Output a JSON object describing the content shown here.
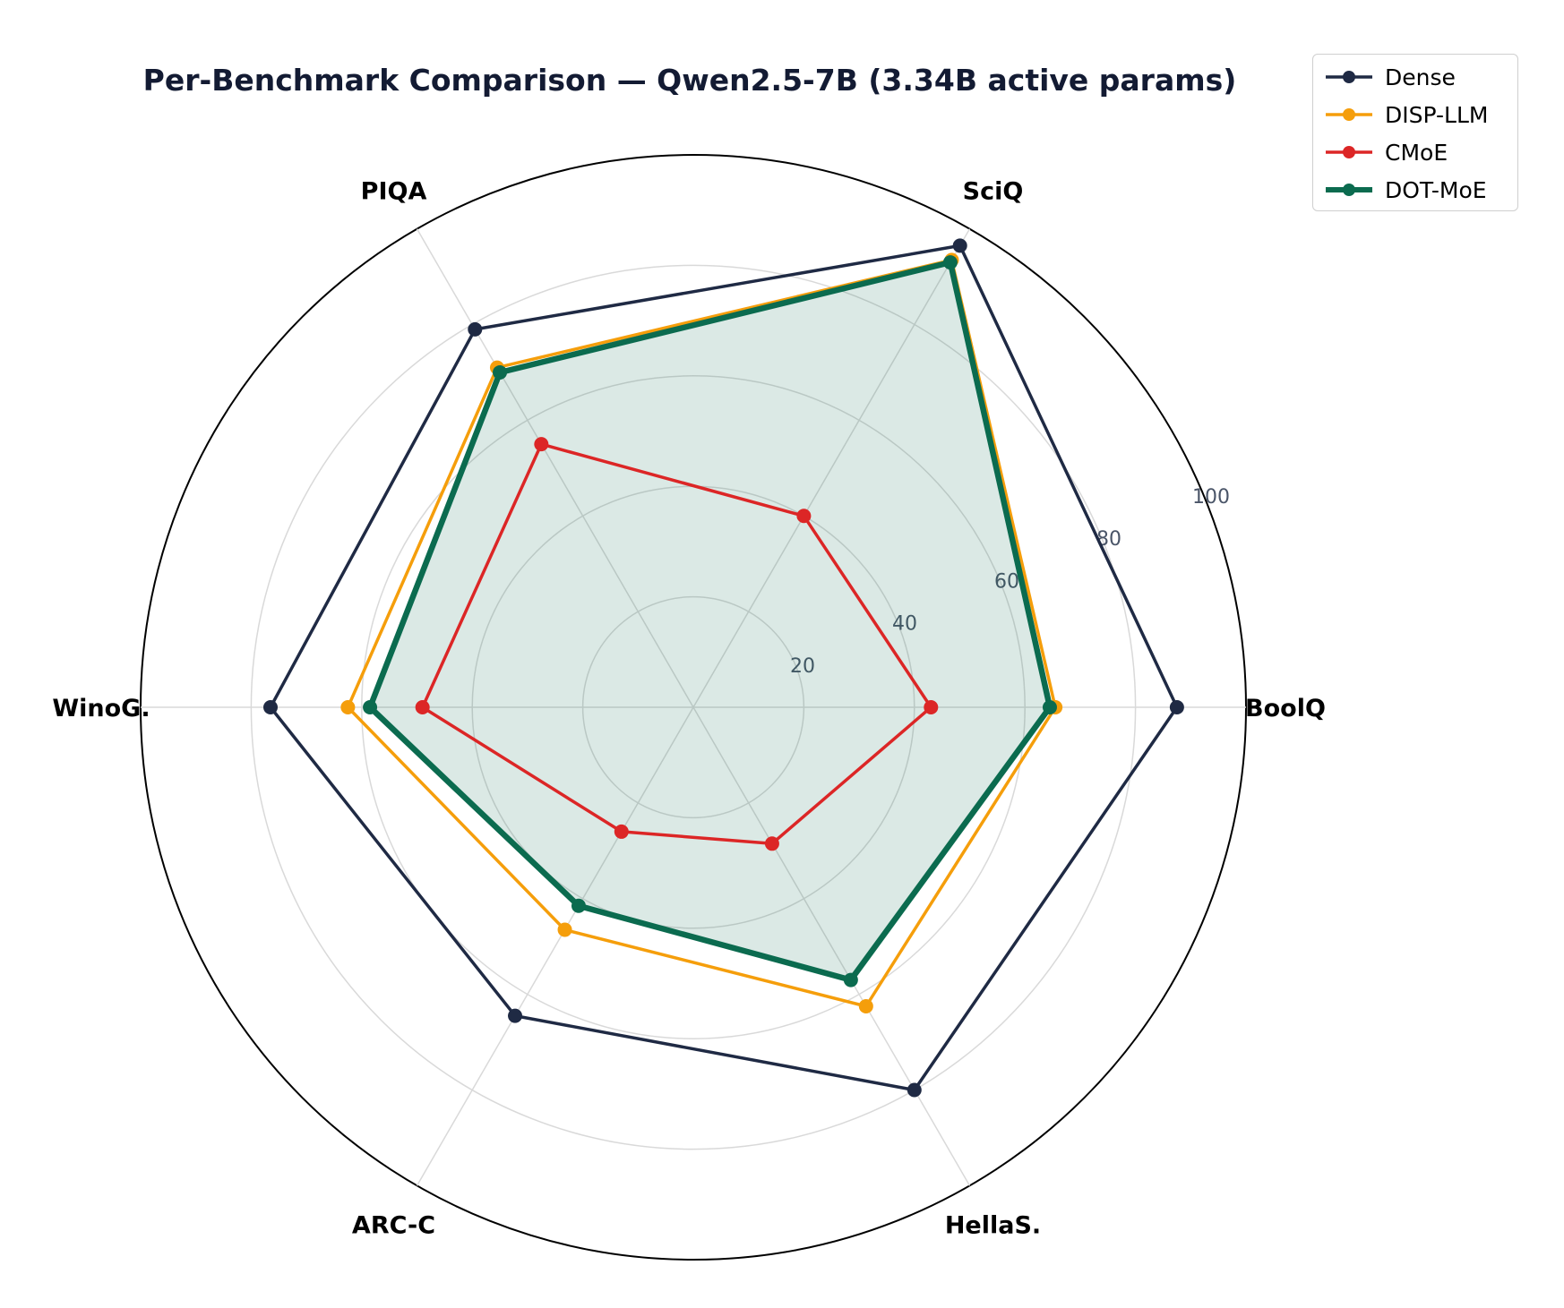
{
  "chart_data": {
    "type": "radar",
    "title": "Per-Benchmark Comparison — Qwen2.5-7B (3.34B active params)",
    "categories": [
      "BoolQ",
      "SciQ",
      "PIQA",
      "WinoG.",
      "ARC-C",
      "HellaS."
    ],
    "r_ticks": [
      20,
      40,
      60,
      80,
      100
    ],
    "r_range": [
      0,
      100
    ],
    "grid": true,
    "legend_position": "top-right",
    "series": [
      {
        "name": "Dense",
        "color": "#1f2a44",
        "values": [
          87.5,
          96.5,
          79.0,
          76.5,
          64.5,
          80.0
        ]
      },
      {
        "name": "DISP-LLM",
        "color": "#f59e0b",
        "values": [
          65.5,
          93.5,
          71.0,
          62.5,
          46.5,
          62.5
        ]
      },
      {
        "name": "CMoE",
        "color": "#dc2626",
        "values": [
          43.0,
          40.0,
          55.0,
          49.0,
          26.0,
          28.5
        ]
      },
      {
        "name": "DOT-MoE",
        "color": "#0b6b4f",
        "fill": true,
        "values": [
          64.5,
          93.0,
          70.0,
          58.5,
          41.5,
          57.0
        ]
      }
    ]
  }
}
